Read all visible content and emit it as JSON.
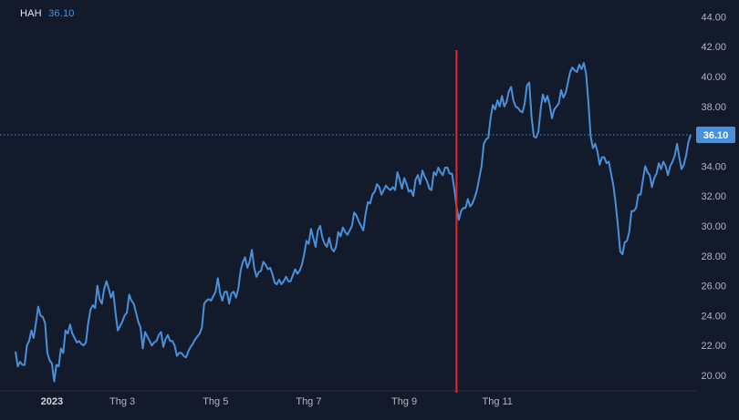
{
  "header": {
    "symbol": "HAH",
    "last_value": "36.10"
  },
  "colors": {
    "background": "#131a2b",
    "line": "#4a90d9",
    "marker": "#e8242b",
    "badge": "#4a90d9",
    "axis_text": "#b2b5be"
  },
  "chart_data": {
    "type": "line",
    "title": "",
    "xlabel": "",
    "ylabel": "",
    "ylim": [
      19,
      44
    ],
    "y_ticks": [
      "20.00",
      "22.00",
      "24.00",
      "26.00",
      "28.00",
      "30.00",
      "32.00",
      "34.00",
      "36.00",
      "38.00",
      "40.00",
      "42.00",
      "44.00"
    ],
    "x_ticks": [
      {
        "label": "2023",
        "index": 16,
        "bold": true
      },
      {
        "label": "Thg 3",
        "index": 47,
        "bold": false
      },
      {
        "label": "Thg 5",
        "index": 88,
        "bold": false
      },
      {
        "label": "Thg 7",
        "index": 129,
        "bold": false
      },
      {
        "label": "Thg 9",
        "index": 171,
        "bold": false
      },
      {
        "label": "Thg 11",
        "index": 212,
        "bold": false
      }
    ],
    "last_price_label": "36.10",
    "last_price": 36.1,
    "marker_index": 194,
    "grid": false,
    "series": [
      {
        "values": [
          21.6,
          20.6,
          20.9,
          20.7,
          20.7,
          22.0,
          22.3,
          23.0,
          22.5,
          23.5,
          24.6,
          24.0,
          23.9,
          23.5,
          21.5,
          21.0,
          20.8,
          19.6,
          20.7,
          20.6,
          21.8,
          21.5,
          23.0,
          22.8,
          23.4,
          22.8,
          22.5,
          22.2,
          22.3,
          22.1,
          22.0,
          22.2,
          23.5,
          24.4,
          24.7,
          24.5,
          26.0,
          25.1,
          24.8,
          25.8,
          26.3,
          25.8,
          25.2,
          25.6,
          24.2,
          23.0,
          23.3,
          23.6,
          24.0,
          24.2,
          25.4,
          25.0,
          24.8,
          24.2,
          23.6,
          23.2,
          21.8,
          22.9,
          22.6,
          22.3,
          22.0,
          22.2,
          22.3,
          22.7,
          22.9,
          21.9,
          22.4,
          22.7,
          22.3,
          22.3,
          22.0,
          21.3,
          21.5,
          21.5,
          21.3,
          21.2,
          21.6,
          21.9,
          22.1,
          22.4,
          22.6,
          22.8,
          23.2,
          24.8,
          25.0,
          25.1,
          25.0,
          25.3,
          25.6,
          26.5,
          25.5,
          25.0,
          25.6,
          25.6,
          24.8,
          25.5,
          25.6,
          25.2,
          25.8,
          27.0,
          27.6,
          27.9,
          27.2,
          27.6,
          28.4,
          27.2,
          26.6,
          26.9,
          27.0,
          27.6,
          27.4,
          27.1,
          27.2,
          26.8,
          26.2,
          26.1,
          26.4,
          26.1,
          26.3,
          26.6,
          26.3,
          26.3,
          26.7,
          27.1,
          26.8,
          27.0,
          27.4,
          28.1,
          29.0,
          28.8,
          29.8,
          29.2,
          28.6,
          29.7,
          30.0,
          29.2,
          28.8,
          28.6,
          29.2,
          28.5,
          28.3,
          28.6,
          29.6,
          29.3,
          29.9,
          29.6,
          29.4,
          29.7,
          30.0,
          30.9,
          30.7,
          30.3,
          30.0,
          29.7,
          30.8,
          31.6,
          31.5,
          32.1,
          32.3,
          32.8,
          32.6,
          32.1,
          32.4,
          32.7,
          32.5,
          32.4,
          32.6,
          32.4,
          33.6,
          33.1,
          32.5,
          33.2,
          32.8,
          32.3,
          32.4,
          32.0,
          33.1,
          33.4,
          32.8,
          33.7,
          33.3,
          33.0,
          32.5,
          32.4,
          33.6,
          33.4,
          33.9,
          33.6,
          33.4,
          33.9,
          33.9,
          33.5,
          33.5,
          32.5,
          31.3,
          30.4,
          31.0,
          31.2,
          31.2,
          31.8,
          31.3,
          31.5,
          31.9,
          32.4,
          33.2,
          34.0,
          35.5,
          35.8,
          35.9,
          37.2,
          38.1,
          37.8,
          38.4,
          38.0,
          38.7,
          38.0,
          38.3,
          39.0,
          39.3,
          38.4,
          38.0,
          37.9,
          37.7,
          37.6,
          38.2,
          39.4,
          39.6,
          37.3,
          36.0,
          35.9,
          36.3,
          37.8,
          38.8,
          38.3,
          38.7,
          38.1,
          37.2,
          37.8,
          38.0,
          38.2,
          39.1,
          38.6,
          38.9,
          39.6,
          40.3,
          40.6,
          40.4,
          40.3,
          40.8,
          40.5,
          40.9,
          40.2,
          38.3,
          36.0,
          35.2,
          35.5,
          35.0,
          34.1,
          34.6,
          34.6,
          34.2,
          34.3,
          33.5,
          32.7,
          31.5,
          30.0,
          28.3,
          28.1,
          28.9,
          29.0,
          29.6,
          31.0,
          31.0,
          31.2,
          32.1,
          32.1,
          33.1,
          34.0,
          33.6,
          33.4,
          32.6,
          33.2,
          33.5,
          34.2,
          33.8,
          34.3,
          34.0,
          33.4,
          34.0,
          34.3,
          34.7,
          35.5,
          34.6,
          33.8,
          34.1,
          34.7,
          35.6,
          36.1
        ]
      }
    ]
  }
}
